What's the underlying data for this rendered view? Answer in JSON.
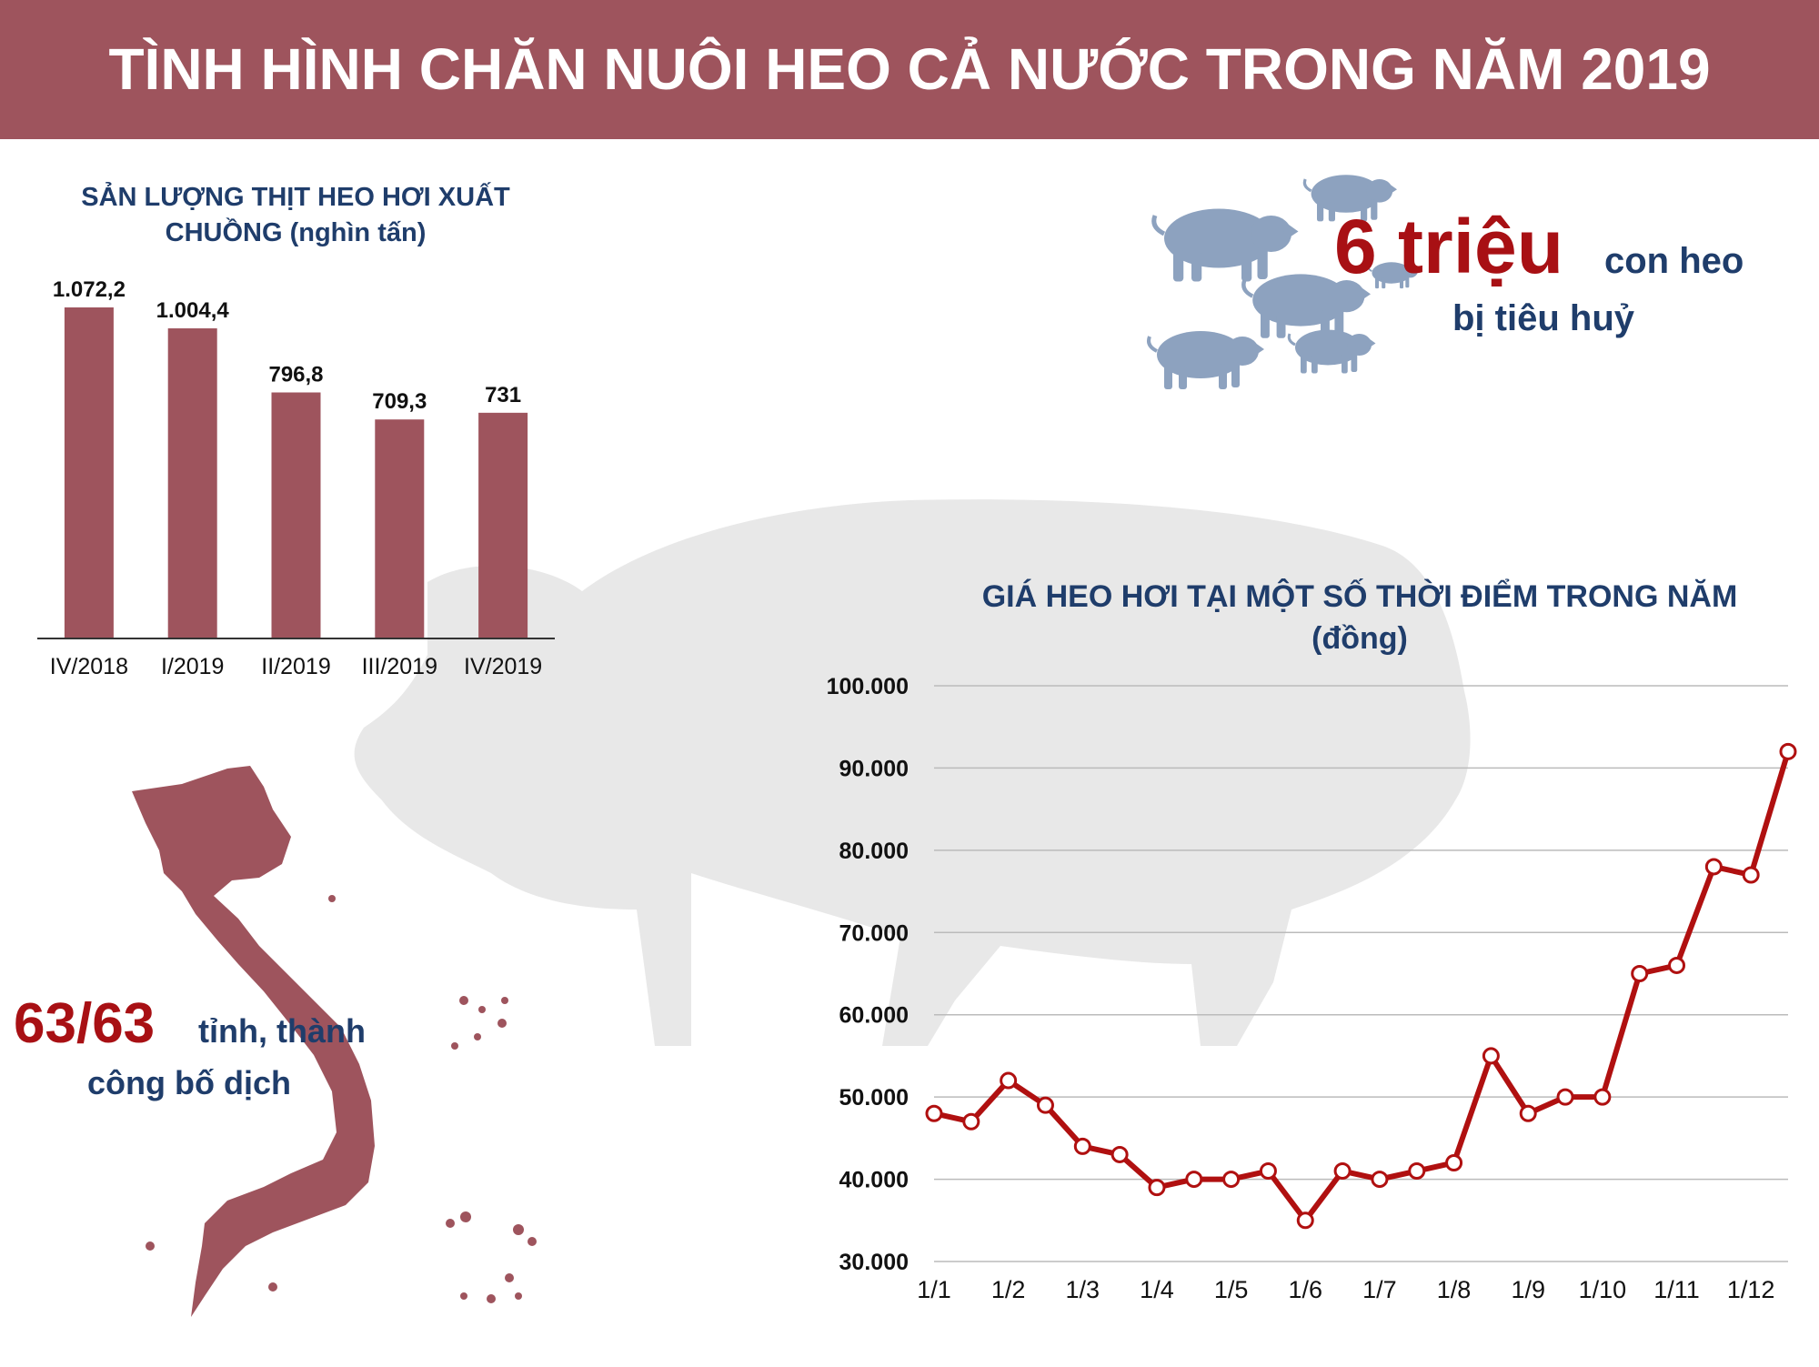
{
  "title": "TÌNH HÌNH CHĂN NUÔI HEO CẢ NƯỚC TRONG NĂM 2019",
  "pigs_callout": {
    "number": "6 triệu",
    "unit": "con heo",
    "text": "bị tiêu huỷ"
  },
  "provinces_callout": {
    "number": "63/63",
    "unit": "tỉnh, thành",
    "text": "công bố dịch"
  },
  "chart_data": [
    {
      "type": "bar",
      "title": "SẢN LƯỢNG THỊT HEO HƠI XUẤT CHUỒNG (nghìn tấn)",
      "categories": [
        "IV/2018",
        "I/2019",
        "II/2019",
        "III/2019",
        "IV/2019"
      ],
      "values": [
        1072.2,
        1004.4,
        796.8,
        709.3,
        731
      ],
      "value_labels": [
        "1.072,2",
        "1.004,4",
        "796,8",
        "709,3",
        "731"
      ],
      "color": "#9e545d"
    },
    {
      "type": "line",
      "title": "GIÁ HEO HƠI TẠI MỘT SỐ THỜI ĐIỂM TRONG NĂM (đồng)",
      "categories": [
        "1/1",
        null,
        "1/2",
        null,
        "1/3",
        null,
        "1/4",
        null,
        "1/5",
        null,
        "1/6",
        null,
        "1/7",
        null,
        "1/8",
        null,
        "1/9",
        null,
        "1/10",
        null,
        "1/11",
        null,
        "1/12",
        null
      ],
      "values": [
        48000,
        47000,
        52000,
        49000,
        44000,
        43000,
        39000,
        40000,
        40000,
        41000,
        35000,
        41000,
        40000,
        41000,
        42000,
        55000,
        48000,
        50000,
        50000,
        65000,
        66000,
        78000,
        77000,
        92000
      ],
      "color": "#b01010",
      "ylim": [
        30000,
        100000
      ],
      "yticks": [
        {
          "value": 30000,
          "label": "30.000"
        },
        {
          "value": 40000,
          "label": "40.000"
        },
        {
          "value": 50000,
          "label": "50.000"
        },
        {
          "value": 60000,
          "label": "60.000"
        },
        {
          "value": 70000,
          "label": "70.000"
        },
        {
          "value": 80000,
          "label": "80.000"
        },
        {
          "value": 90000,
          "label": "90.000"
        },
        {
          "value": 100000,
          "label": "100.000"
        }
      ],
      "grid": true
    }
  ]
}
